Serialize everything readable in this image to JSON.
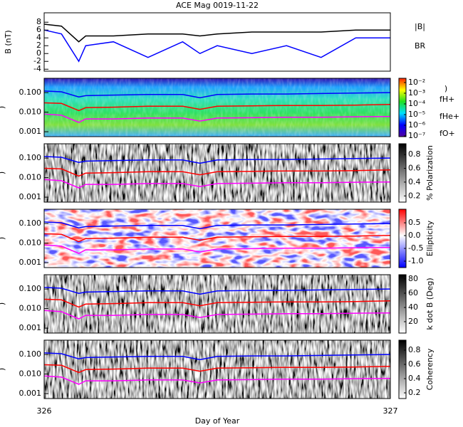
{
  "chart_data": [
    {
      "type": "line",
      "title": "ACE Mag 0019-11-22",
      "ylabel": "B (nT)",
      "legend": "right",
      "x": [
        326,
        326.05,
        326.1,
        326.12,
        326.2,
        326.3,
        326.4,
        326.45,
        326.5,
        326.6,
        326.7,
        326.8,
        326.9,
        327
      ],
      "series": [
        {
          "name": "|B|",
          "color": "#000000",
          "values": [
            7.5,
            7,
            3,
            4.5,
            4.5,
            5,
            5,
            4.5,
            5,
            5.5,
            5.5,
            5.5,
            6,
            6
          ]
        },
        {
          "name": "BR",
          "color": "#0000ff",
          "values": [
            6,
            5,
            -2,
            2,
            3,
            -1,
            3,
            0,
            2,
            0,
            2,
            -1,
            4,
            4
          ]
        }
      ],
      "xlim": [
        326,
        327
      ],
      "ylim": [
        -4.5,
        10.4
      ],
      "yticks": [
        -4,
        -2,
        0,
        2,
        4,
        6,
        8
      ]
    },
    {
      "type": "spectrogram",
      "ylabel": ")",
      "log_y": true,
      "legend": "right",
      "x": [
        326,
        326.05,
        326.1,
        326.12,
        326.2,
        326.3,
        326.4,
        326.45,
        326.5,
        326.6,
        326.7,
        326.8,
        326.9,
        327
      ],
      "series": [
        {
          "name": "fH+",
          "color": "#0000ff",
          "values": [
            0.12,
            0.11,
            0.06,
            0.07,
            0.075,
            0.08,
            0.08,
            0.055,
            0.08,
            0.085,
            0.085,
            0.09,
            0.095,
            0.1
          ]
        },
        {
          "name": "fHe+",
          "color": "#ff0000",
          "values": [
            0.03,
            0.028,
            0.012,
            0.017,
            0.018,
            0.02,
            0.02,
            0.014,
            0.02,
            0.021,
            0.022,
            0.022,
            0.023,
            0.025
          ]
        },
        {
          "name": "fO+",
          "color": "#ff00ff",
          "values": [
            0.008,
            0.007,
            0.003,
            0.0045,
            0.0045,
            0.005,
            0.005,
            0.0035,
            0.005,
            0.0052,
            0.0055,
            0.0055,
            0.0058,
            0.006
          ]
        }
      ],
      "xlim": [
        326,
        327
      ],
      "ylim": [
        0.00056,
        0.54
      ],
      "yticks": [
        0.001,
        {
          "value": 0.01,
          "label": "0.010"
        },
        {
          "value": 0.1,
          "label": "0.100"
        }
      ],
      "colorbar": {
        "label": ")",
        "colormap": "rainbow",
        "log": true,
        "clim": [
          8.6e-08,
          0.025
        ],
        "ticks": [
          {
            "value": 0.01,
            "label": "10⁻²"
          },
          {
            "value": 0.001,
            "label": "10⁻³"
          },
          {
            "value": 0.0001,
            "label": "10⁻⁴"
          },
          {
            "value": 1e-05,
            "label": "10⁻⁵"
          },
          {
            "value": 1e-06,
            "label": "10⁻⁶"
          },
          {
            "value": 1e-07,
            "label": "10⁻⁷"
          }
        ]
      }
    },
    {
      "type": "spectrogram",
      "ylabel": ")",
      "log_y": true,
      "x": [
        326,
        326.05,
        326.1,
        326.12,
        326.2,
        326.3,
        326.4,
        326.45,
        326.5,
        326.6,
        326.7,
        326.8,
        326.9,
        327
      ],
      "series": [
        {
          "name": "fH+",
          "color": "#0000ff",
          "values": [
            0.12,
            0.11,
            0.06,
            0.07,
            0.075,
            0.08,
            0.08,
            0.055,
            0.08,
            0.085,
            0.085,
            0.09,
            0.095,
            0.1
          ]
        },
        {
          "name": "fHe+",
          "color": "#ff0000",
          "values": [
            0.03,
            0.028,
            0.012,
            0.017,
            0.018,
            0.02,
            0.02,
            0.014,
            0.02,
            0.021,
            0.022,
            0.022,
            0.023,
            0.025
          ]
        },
        {
          "name": "fO+",
          "color": "#ff00ff",
          "values": [
            0.008,
            0.007,
            0.003,
            0.0045,
            0.0045,
            0.005,
            0.005,
            0.0035,
            0.005,
            0.0052,
            0.0055,
            0.0055,
            0.0058,
            0.006
          ]
        }
      ],
      "xlim": [
        326,
        327
      ],
      "ylim": [
        0.00056,
        0.54
      ],
      "yticks": [
        0.001,
        {
          "value": 0.01,
          "label": "0.010"
        },
        {
          "value": 0.1,
          "label": "0.100"
        }
      ],
      "colorbar": {
        "label": "% Polarization",
        "colormap": "gray",
        "clim": [
          0.11,
          0.956
        ],
        "ticks": [
          0.2,
          0.4,
          0.6,
          0.8
        ]
      }
    },
    {
      "type": "spectrogram",
      "ylabel": ")",
      "log_y": true,
      "x": [
        326,
        326.05,
        326.1,
        326.12,
        326.2,
        326.3,
        326.4,
        326.45,
        326.5,
        326.6,
        326.7,
        326.8,
        326.9,
        327
      ],
      "series": [
        {
          "name": "fH+",
          "color": "#0000ff",
          "values": [
            0.12,
            0.11,
            0.06,
            0.07,
            0.075,
            0.08,
            0.08,
            0.055,
            0.08,
            0.085,
            0.085,
            0.09,
            0.095,
            0.1
          ]
        },
        {
          "name": "fHe+",
          "color": "#ff0000",
          "values": [
            0.03,
            0.028,
            0.012,
            0.017,
            0.018,
            0.02,
            0.02,
            0.014,
            0.02,
            0.021,
            0.022,
            0.022,
            0.023,
            0.025
          ]
        },
        {
          "name": "fO+",
          "color": "#ff00ff",
          "values": [
            0.008,
            0.007,
            0.003,
            0.0045,
            0.0045,
            0.005,
            0.005,
            0.0035,
            0.005,
            0.0052,
            0.0055,
            0.0055,
            0.0058,
            0.006
          ]
        }
      ],
      "xlim": [
        326,
        327
      ],
      "ylim": [
        0.00056,
        0.54
      ],
      "yticks": [
        0.001,
        {
          "value": 0.01,
          "label": "0.010"
        },
        {
          "value": 0.1,
          "label": "0.100"
        }
      ],
      "colorbar": {
        "label": "Ellipticity",
        "colormap": "bwr",
        "clim": [
          -1.25,
          1.03
        ],
        "ticks": [
          {
            "value": -1,
            "label": "-1.0"
          },
          -0.5,
          {
            "value": 0,
            "label": "0.0"
          },
          0.5
        ]
      }
    },
    {
      "type": "spectrogram",
      "ylabel": ")",
      "log_y": true,
      "x": [
        326,
        326.05,
        326.1,
        326.12,
        326.2,
        326.3,
        326.4,
        326.45,
        326.5,
        326.6,
        326.7,
        326.8,
        326.9,
        327
      ],
      "series": [
        {
          "name": "fH+",
          "color": "#0000ff",
          "values": [
            0.12,
            0.11,
            0.06,
            0.07,
            0.075,
            0.08,
            0.08,
            0.055,
            0.08,
            0.085,
            0.085,
            0.09,
            0.095,
            0.1
          ]
        },
        {
          "name": "fHe+",
          "color": "#ff0000",
          "values": [
            0.03,
            0.028,
            0.012,
            0.017,
            0.018,
            0.02,
            0.02,
            0.014,
            0.02,
            0.021,
            0.022,
            0.022,
            0.023,
            0.025
          ]
        },
        {
          "name": "fO+",
          "color": "#ff00ff",
          "values": [
            0.008,
            0.007,
            0.003,
            0.0045,
            0.0045,
            0.005,
            0.005,
            0.0035,
            0.005,
            0.0052,
            0.0055,
            0.0055,
            0.0058,
            0.006
          ]
        }
      ],
      "xlim": [
        326,
        327
      ],
      "ylim": [
        0.00056,
        0.54
      ],
      "yticks": [
        0.001,
        {
          "value": 0.01,
          "label": "0.010"
        },
        {
          "value": 0.1,
          "label": "0.100"
        }
      ],
      "colorbar": {
        "label": "k dot B (Deg)",
        "colormap": "gray",
        "clim": [
          4,
          86
        ],
        "ticks": [
          20,
          40,
          60,
          80
        ]
      }
    },
    {
      "type": "spectrogram",
      "ylabel": ")",
      "log_y": true,
      "xlabel": "Day of Year",
      "x": [
        326,
        326.05,
        326.1,
        326.12,
        326.2,
        326.3,
        326.4,
        326.45,
        326.5,
        326.6,
        326.7,
        326.8,
        326.9,
        327
      ],
      "series": [
        {
          "name": "fH+",
          "color": "#0000ff",
          "values": [
            0.12,
            0.11,
            0.06,
            0.07,
            0.075,
            0.08,
            0.08,
            0.055,
            0.08,
            0.085,
            0.085,
            0.09,
            0.095,
            0.1
          ]
        },
        {
          "name": "fHe+",
          "color": "#ff0000",
          "values": [
            0.03,
            0.028,
            0.012,
            0.017,
            0.018,
            0.02,
            0.02,
            0.014,
            0.02,
            0.021,
            0.022,
            0.022,
            0.023,
            0.025
          ]
        },
        {
          "name": "fO+",
          "color": "#ff00ff",
          "values": [
            0.008,
            0.007,
            0.003,
            0.0045,
            0.0045,
            0.005,
            0.005,
            0.0035,
            0.005,
            0.0052,
            0.0055,
            0.0055,
            0.0058,
            0.006
          ]
        }
      ],
      "xlim": [
        326,
        327
      ],
      "xticks": [
        326,
        327
      ],
      "ylim": [
        0.00056,
        0.54
      ],
      "yticks": [
        0.001,
        {
          "value": 0.01,
          "label": "0.010"
        },
        {
          "value": 0.1,
          "label": "0.100"
        }
      ],
      "colorbar": {
        "label": "Coherency",
        "colormap": "gray",
        "clim": [
          0.12,
          0.94
        ],
        "ticks": [
          0.2,
          0.4,
          0.6,
          0.8
        ]
      }
    }
  ]
}
